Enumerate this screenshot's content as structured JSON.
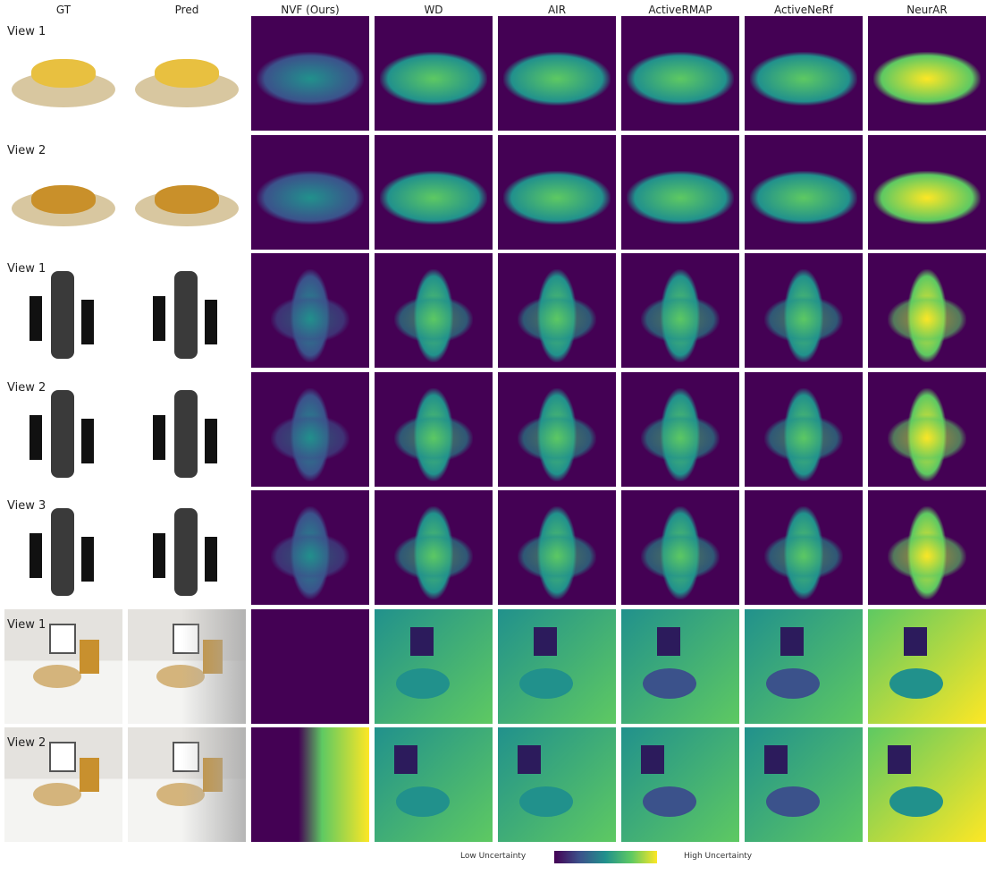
{
  "columns": [
    "GT",
    "Pred",
    "NVF (Ours)",
    "WD",
    "AIR",
    "ActiveRMAP",
    "ActiveNeRf",
    "NeurAR"
  ],
  "rows": [
    "View 1",
    "View 2",
    "View 1",
    "View 2",
    "View 3",
    "View 1",
    "View 2"
  ],
  "colorbar": {
    "low": "Low Uncertainty",
    "high": "High Uncertainty"
  }
}
